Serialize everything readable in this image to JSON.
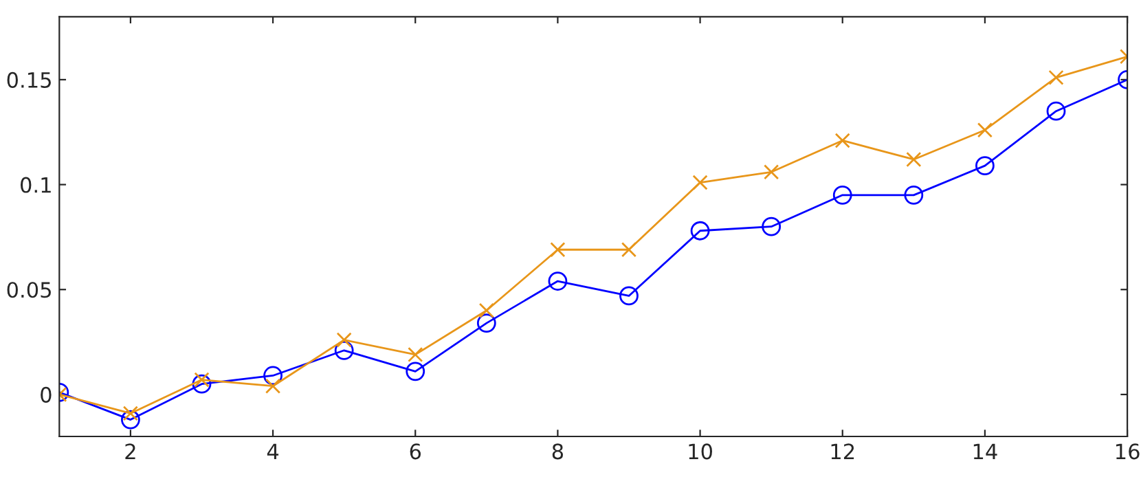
{
  "chart_data": {
    "type": "line",
    "x": [
      1,
      2,
      3,
      4,
      5,
      6,
      7,
      8,
      9,
      10,
      11,
      12,
      13,
      14,
      15,
      16
    ],
    "series": [
      {
        "color": "#0000ff",
        "marker": "circle",
        "values": [
          0.001,
          -0.012,
          0.005,
          0.009,
          0.021,
          0.011,
          0.034,
          0.054,
          0.047,
          0.078,
          0.08,
          0.095,
          0.095,
          0.109,
          0.135,
          0.15
        ]
      },
      {
        "color": "#e8961a",
        "marker": "cross",
        "values": [
          0.0,
          -0.009,
          0.007,
          0.004,
          0.026,
          0.019,
          0.04,
          0.069,
          0.069,
          0.101,
          0.106,
          0.121,
          0.112,
          0.126,
          0.151,
          0.161
        ]
      }
    ],
    "xlim": [
      1,
      16
    ],
    "xticks": [
      2,
      4,
      6,
      8,
      10,
      12,
      14,
      16
    ],
    "ylim": [
      -0.02,
      0.18
    ],
    "yticks": [
      0,
      0.05,
      0.1,
      0.15
    ],
    "grid": false,
    "legend": false,
    "line_style": "solid"
  }
}
